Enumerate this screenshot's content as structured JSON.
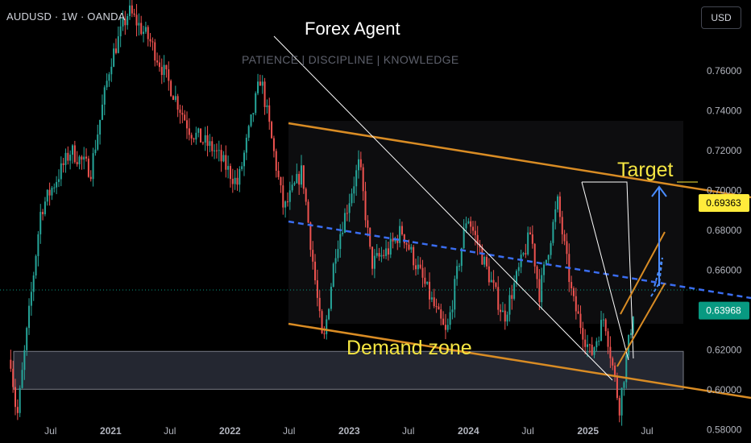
{
  "header": {
    "symbol": "AUDUSD · 1W · OANDA",
    "currency_button": "USD"
  },
  "watermark": {
    "brand": "Forex Agent",
    "tagline": "PATIENCE  |  DISCIPLINE  |  KNOWLEDGE"
  },
  "annotations": {
    "demand_zone": "Demand zone",
    "target": "Target"
  },
  "colors": {
    "background": "#000000",
    "bull": "#26a69a",
    "bear": "#ef5350",
    "channel": "#d98c24",
    "trend_dashed": "#2962ff",
    "target_arrow": "#4a8cff",
    "target_price_bg": "#ffeb3b",
    "last_price_bg": "#089981",
    "zone_fill": "#2a2e39"
  },
  "chart_data": {
    "type": "candlestick",
    "symbol": "AUDUSD",
    "timeframe": "1W",
    "x_tick_labels": [
      "Jul",
      "2021",
      "Jul",
      "2022",
      "Jul",
      "2023",
      "Jul",
      "2024",
      "Jul",
      "2025",
      "Jul"
    ],
    "y_tick_labels": [
      "0.76000",
      "0.74000",
      "0.72000",
      "0.70000",
      "0.68000",
      "0.66000",
      "0.64000",
      "0.62000",
      "0.60000",
      "0.58000"
    ],
    "ylim": [
      0.5785,
      0.7805
    ],
    "target_price": "0.69363",
    "last_price": "0.63968",
    "demand_zone": [
      0.6002,
      0.6192
    ],
    "close_path": [
      {
        "date": "2020-03-01",
        "value": 0.615
      },
      {
        "date": "2020-03-20",
        "value": 0.585
      },
      {
        "date": "2020-06-01",
        "value": 0.69
      },
      {
        "date": "2020-09-01",
        "value": 0.72
      },
      {
        "date": "2020-11-01",
        "value": 0.71
      },
      {
        "date": "2021-01-01",
        "value": 0.765
      },
      {
        "date": "2021-02-25",
        "value": 0.79
      },
      {
        "date": "2021-05-01",
        "value": 0.775
      },
      {
        "date": "2021-09-01",
        "value": 0.73
      },
      {
        "date": "2021-11-15",
        "value": 0.72
      },
      {
        "date": "2022-01-25",
        "value": 0.703
      },
      {
        "date": "2022-04-05",
        "value": 0.757
      },
      {
        "date": "2022-06-15",
        "value": 0.69
      },
      {
        "date": "2022-08-10",
        "value": 0.71
      },
      {
        "date": "2022-10-13",
        "value": 0.621
      },
      {
        "date": "2022-11-20",
        "value": 0.67
      },
      {
        "date": "2023-02-01",
        "value": 0.714
      },
      {
        "date": "2023-03-10",
        "value": 0.663
      },
      {
        "date": "2023-05-01",
        "value": 0.67
      },
      {
        "date": "2023-06-10",
        "value": 0.68
      },
      {
        "date": "2023-10-26",
        "value": 0.627
      },
      {
        "date": "2023-12-28",
        "value": 0.688
      },
      {
        "date": "2024-04-19",
        "value": 0.636
      },
      {
        "date": "2024-07-10",
        "value": 0.679
      },
      {
        "date": "2024-08-05",
        "value": 0.648
      },
      {
        "date": "2024-09-30",
        "value": 0.694
      },
      {
        "date": "2024-11-15",
        "value": 0.645
      },
      {
        "date": "2025-01-10",
        "value": 0.617
      },
      {
        "date": "2025-02-20",
        "value": 0.637
      },
      {
        "date": "2025-04-07",
        "value": 0.591
      },
      {
        "date": "2025-05-20",
        "value": 0.64
      }
    ]
  }
}
